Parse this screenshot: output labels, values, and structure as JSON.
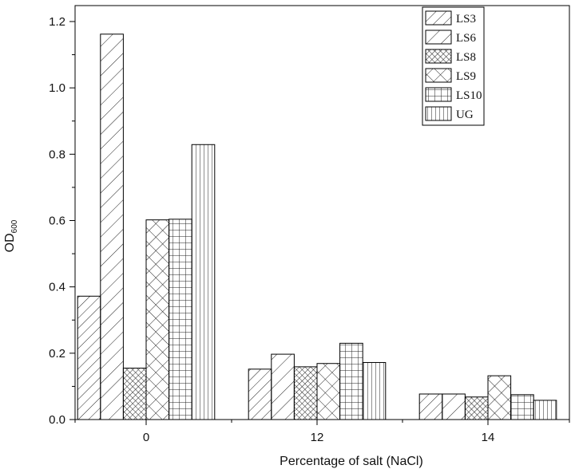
{
  "chart_data": {
    "type": "bar",
    "title": "",
    "xlabel": "Percentage of salt (NaCl)",
    "ylabel": "OD",
    "ylabel_subscript": "600",
    "categories": [
      "0",
      "12",
      "14"
    ],
    "ylim": [
      0,
      1.2
    ],
    "yticks": [
      "0.0",
      "0.2",
      "0.4",
      "0.6",
      "0.8",
      "1.0",
      "1.2"
    ],
    "grid": false,
    "legend_position": "top-right",
    "series": [
      {
        "name": "LS3",
        "pattern": "diag-right-wide",
        "values": [
          0.372,
          0.152,
          0.077
        ]
      },
      {
        "name": "LS6",
        "pattern": "diag-right",
        "values": [
          1.162,
          0.197,
          0.077
        ]
      },
      {
        "name": "LS8",
        "pattern": "crosshatch-dense",
        "values": [
          0.155,
          0.159,
          0.068
        ]
      },
      {
        "name": "LS9",
        "pattern": "crosshatch-wide",
        "values": [
          0.602,
          0.169,
          0.132
        ]
      },
      {
        "name": "LS10",
        "pattern": "grid",
        "values": [
          0.604,
          0.23,
          0.075
        ]
      },
      {
        "name": "UG",
        "pattern": "vertical",
        "values": [
          0.829,
          0.172,
          0.058
        ]
      }
    ]
  }
}
